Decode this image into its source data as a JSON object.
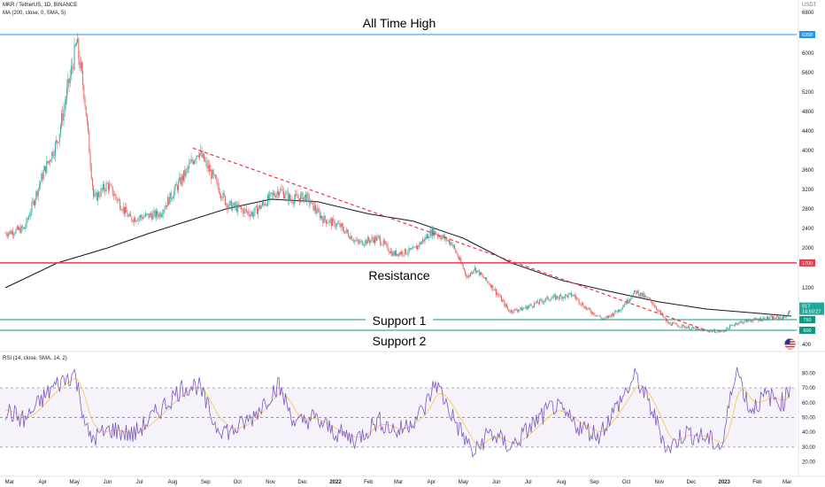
{
  "header": {
    "symbol_line": "MKR / TetherUS, 1D, BINANCE",
    "ma_line": "MA (200, close, 0, SMA, 5)",
    "rsi_line": "RSI (14, close, SMA, 14, 2)",
    "currency": "USDT"
  },
  "colors": {
    "up": "#26a69a",
    "down": "#ef5350",
    "ma": "#131722",
    "ath_line": "#2196f3",
    "resistance": "#f23645",
    "support": "#089981",
    "trend": "#f23645",
    "rsi": "#7e57c2"
  },
  "chart_data": {
    "type": "candlestick",
    "x_ticks": [
      "Mar",
      "Apr",
      "May",
      "Jun",
      "Jul",
      "Aug",
      "Sep",
      "Oct",
      "Nov",
      "Dec",
      "2022",
      "Feb",
      "Mar",
      "Apr",
      "May",
      "Jun",
      "Jul",
      "Aug",
      "Sep",
      "Oct",
      "Nov",
      "Dec",
      "2023",
      "Feb",
      "Mar"
    ],
    "y_ticks": [
      6000,
      5600,
      5200,
      4800,
      4400,
      4000,
      3600,
      3200,
      2800,
      2400,
      2000,
      1200,
      400
    ],
    "y_tick_labels": [
      "6000",
      "5600",
      "5200",
      "4800",
      "4400",
      "4000",
      "3600",
      "3200",
      "2800",
      "2400",
      "2000",
      "1200",
      "400"
    ],
    "y_top_label": "6800",
    "price_series": {
      "name": "MKR/USDT close",
      "x": [
        "2021-02-25",
        "2021-03-15",
        "2021-04-01",
        "2021-04-15",
        "2021-05-03",
        "2021-05-10",
        "2021-05-19",
        "2021-06-01",
        "2021-06-22",
        "2021-07-20",
        "2021-08-15",
        "2021-08-25",
        "2021-09-07",
        "2021-09-21",
        "2021-10-15",
        "2021-11-09",
        "2021-11-20",
        "2021-12-04",
        "2021-12-20",
        "2022-01-05",
        "2022-01-22",
        "2022-02-10",
        "2022-02-24",
        "2022-03-15",
        "2022-04-02",
        "2022-04-20",
        "2022-05-05",
        "2022-05-11",
        "2022-05-20",
        "2022-06-13",
        "2022-06-25",
        "2022-07-20",
        "2022-08-12",
        "2022-08-25",
        "2022-09-10",
        "2022-09-25",
        "2022-10-10",
        "2022-10-25",
        "2022-11-09",
        "2022-11-25",
        "2022-12-10",
        "2022-12-30",
        "2023-01-12",
        "2023-01-25",
        "2023-02-10",
        "2023-02-25",
        "2023-03-02",
        "2023-03-05"
      ],
      "y": [
        2300,
        2400,
        3500,
        4200,
        6200,
        5200,
        3000,
        3300,
        2600,
        2700,
        3600,
        4000,
        3500,
        2900,
        2700,
        3200,
        3000,
        3050,
        2600,
        2450,
        2100,
        2200,
        1880,
        1950,
        2350,
        2100,
        1400,
        1600,
        1400,
        870,
        900,
        1050,
        1100,
        900,
        750,
        900,
        1150,
        1000,
        700,
        650,
        600,
        580,
        700,
        740,
        770,
        780,
        820,
        917
      ]
    },
    "ma200": {
      "name": "MA (200, close, 0, SMA, 5)",
      "x": [
        "2021-02-25",
        "2021-04-15",
        "2021-06-01",
        "2021-07-10",
        "2021-08-15",
        "2021-09-20",
        "2021-11-01",
        "2021-12-15",
        "2022-02-01",
        "2022-03-15",
        "2022-05-01",
        "2022-06-15",
        "2022-08-01",
        "2022-09-15",
        "2022-11-01",
        "2022-12-15",
        "2023-02-01",
        "2023-03-05"
      ],
      "y": [
        1200,
        1700,
        2000,
        2300,
        2550,
        2800,
        3000,
        2950,
        2700,
        2550,
        2200,
        1700,
        1350,
        1150,
        1000,
        900,
        840,
        800
      ]
    },
    "levels": [
      {
        "label": "All Time High",
        "value": 6358,
        "price_label": "6358"
      },
      {
        "label": "Resistance",
        "value": 1700,
        "price_label": "1700"
      },
      {
        "label": "Support 1",
        "value": 750,
        "price_label": "750"
      },
      {
        "label": "Support 2",
        "value": 600,
        "price_label": "600"
      }
    ],
    "trendline": {
      "x": [
        "2021-08-20",
        "2022-12-15"
      ],
      "y": [
        4050,
        600
      ]
    },
    "last_price": {
      "value": 917,
      "label": "917",
      "countdown": "14:50:27"
    },
    "rsi": {
      "name": "RSI (14, close, SMA, 14, 2)",
      "y_ticks": [
        80,
        70,
        60,
        50,
        40,
        30,
        20
      ],
      "y_tick_labels": [
        "80.00",
        "70.00",
        "60.00",
        "50.00",
        "40.00",
        "30.00",
        "20.00"
      ],
      "band": [
        30,
        70
      ],
      "x": [
        "2021-02-25",
        "2021-03-15",
        "2021-04-10",
        "2021-05-01",
        "2021-05-15",
        "2021-06-05",
        "2021-06-25",
        "2021-07-20",
        "2021-08-10",
        "2021-08-25",
        "2021-09-10",
        "2021-09-25",
        "2021-10-15",
        "2021-11-08",
        "2021-11-25",
        "2021-12-10",
        "2022-01-01",
        "2022-01-20",
        "2022-02-10",
        "2022-03-01",
        "2022-03-25",
        "2022-04-05",
        "2022-04-25",
        "2022-05-11",
        "2022-05-25",
        "2022-06-15",
        "2022-07-05",
        "2022-07-25",
        "2022-08-15",
        "2022-09-05",
        "2022-09-20",
        "2022-10-10",
        "2022-10-25",
        "2022-11-09",
        "2022-11-25",
        "2022-12-15",
        "2022-12-30",
        "2023-01-12",
        "2023-01-25",
        "2023-02-10",
        "2023-02-25",
        "2023-03-05"
      ],
      "y": [
        55,
        48,
        70,
        80,
        35,
        42,
        38,
        55,
        70,
        72,
        45,
        40,
        50,
        72,
        45,
        50,
        40,
        35,
        48,
        40,
        55,
        74,
        45,
        25,
        40,
        30,
        45,
        58,
        45,
        38,
        55,
        78,
        55,
        28,
        40,
        36,
        30,
        85,
        55,
        65,
        60,
        73
      ]
    }
  }
}
